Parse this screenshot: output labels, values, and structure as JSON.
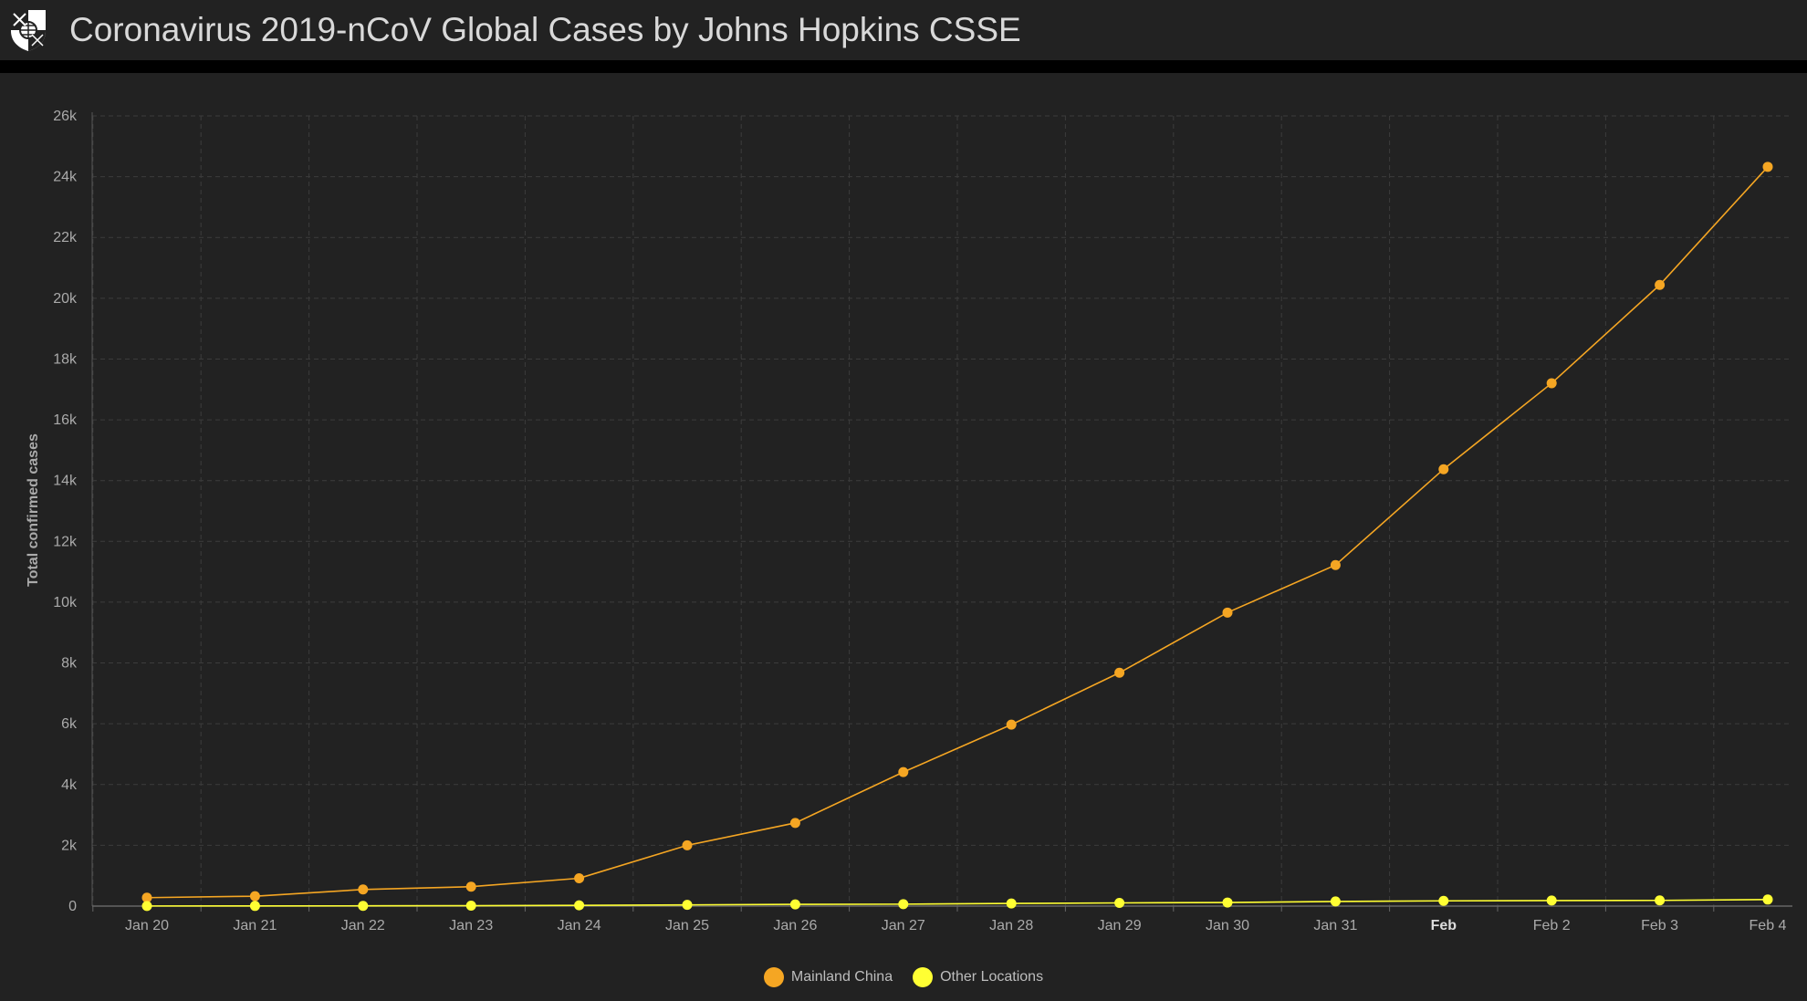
{
  "header": {
    "title": "Coronavirus 2019-nCoV Global Cases by Johns Hopkins CSSE",
    "logo_icon": "jhu-shield-icon"
  },
  "chart_data": {
    "type": "line",
    "title": "",
    "xlabel": "",
    "ylabel": "Total confirmed cases",
    "categories": [
      "Jan 20",
      "Jan 21",
      "Jan 22",
      "Jan 23",
      "Jan 24",
      "Jan 25",
      "Jan 26",
      "Jan 27",
      "Jan 28",
      "Jan 29",
      "Jan 30",
      "Jan 31",
      "Feb",
      "Feb 2",
      "Feb 3",
      "Feb 4"
    ],
    "bold_categories": [
      "Feb"
    ],
    "ylim": [
      0,
      26000
    ],
    "yticks": [
      0,
      2000,
      4000,
      6000,
      8000,
      10000,
      12000,
      14000,
      16000,
      18000,
      20000,
      22000,
      24000,
      26000
    ],
    "ytick_labels": [
      "0",
      "2k",
      "4k",
      "6k",
      "8k",
      "10k",
      "12k",
      "14k",
      "16k",
      "18k",
      "20k",
      "22k",
      "24k",
      "26k"
    ],
    "grid": true,
    "legend_position": "bottom-center",
    "series": [
      {
        "name": "Mainland China",
        "color": "#f5a623",
        "values": [
          278,
          326,
          547,
          639,
          916,
          2000,
          2737,
          4409,
          5970,
          7678,
          9658,
          11221,
          14375,
          17205,
          20438,
          24324
        ]
      },
      {
        "name": "Other Locations",
        "color": "#ffff33",
        "values": [
          4,
          6,
          8,
          14,
          25,
          40,
          57,
          64,
          87,
          105,
          118,
          153,
          173,
          183,
          188,
          216
        ]
      }
    ]
  }
}
